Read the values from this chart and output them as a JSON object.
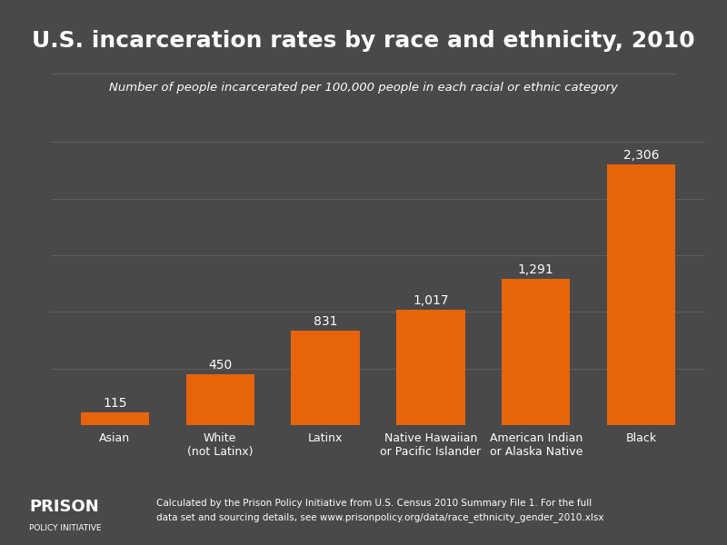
{
  "title": "U.S. incarceration rates by race and ethnicity, 2010",
  "subtitle": "Number of people incarcerated per 100,000 people in each racial or ethnic category",
  "categories": [
    "Asian",
    "White\n(not Latinx)",
    "Latinx",
    "Native Hawaiian\nor Pacific Islander",
    "American Indian\nor Alaska Native",
    "Black"
  ],
  "values": [
    115,
    450,
    831,
    1017,
    1291,
    2306
  ],
  "bar_color": "#E8640A",
  "background_color": "#494949",
  "text_color": "#ffffff",
  "grid_color": "#5d5d5d",
  "title_fontsize": 18,
  "subtitle_fontsize": 9.5,
  "label_fontsize": 9,
  "value_fontsize": 10,
  "footer_fontsize": 7.5,
  "logo_fontsize_1": 13,
  "logo_fontsize_2": 6.5,
  "footer_text": "Calculated by the Prison Policy Initiative from U.S. Census 2010 Summary File 1. For the full\ndata set and sourcing details, see www.prisonpolicy.org/data/race_ethnicity_gender_2010.xlsx",
  "logo_text_1": "PRISON",
  "logo_text_2": "POLICY INITIATIVE",
  "ylim": [
    0,
    2600
  ]
}
